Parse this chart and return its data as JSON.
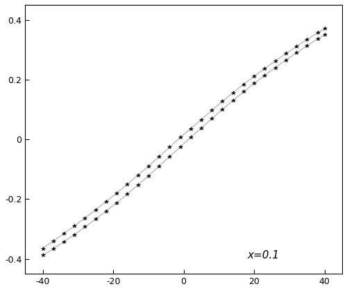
{
  "title": "",
  "annotation": "x=0.1",
  "xlim": [
    -45,
    45
  ],
  "ylim": [
    -0.45,
    0.45
  ],
  "xticks": [
    -40,
    -20,
    0,
    20,
    40
  ],
  "yticks": [
    -0.4,
    -0.2,
    0.0,
    0.2,
    0.4
  ],
  "xlabel": "",
  "ylabel": "",
  "background_color": "#ffffff",
  "line_color": "#aaaaaa",
  "marker_color": "#111111",
  "marker": "*",
  "markersize": 4,
  "linewidth": 0.8,
  "loop_upper": {
    "x": [
      -40,
      -37,
      -34,
      -31,
      -28,
      -25,
      -22,
      -19,
      -16,
      -13,
      -10,
      -7,
      -4,
      -1,
      2,
      5,
      8,
      11,
      14,
      17,
      20,
      23,
      26,
      29,
      32,
      35,
      38,
      40
    ],
    "y": [
      -0.365,
      -0.34,
      -0.315,
      -0.29,
      -0.263,
      -0.236,
      -0.208,
      -0.18,
      -0.15,
      -0.12,
      -0.09,
      -0.058,
      -0.026,
      0.006,
      0.036,
      0.066,
      0.097,
      0.127,
      0.156,
      0.184,
      0.211,
      0.237,
      0.262,
      0.287,
      0.311,
      0.334,
      0.356,
      0.37
    ]
  },
  "loop_lower": {
    "x": [
      -40,
      -37,
      -34,
      -31,
      -28,
      -25,
      -22,
      -19,
      -16,
      -13,
      -10,
      -7,
      -4,
      -1,
      2,
      5,
      8,
      11,
      14,
      17,
      20,
      23,
      26,
      29,
      32,
      35,
      38,
      40
    ],
    "y": [
      -0.388,
      -0.366,
      -0.343,
      -0.319,
      -0.293,
      -0.267,
      -0.24,
      -0.212,
      -0.183,
      -0.153,
      -0.122,
      -0.09,
      -0.058,
      -0.026,
      0.007,
      0.038,
      0.069,
      0.1,
      0.13,
      0.159,
      0.187,
      0.214,
      0.24,
      0.265,
      0.289,
      0.313,
      0.336,
      0.35
    ]
  },
  "figsize": [
    5.0,
    4.2
  ],
  "dpi": 100
}
